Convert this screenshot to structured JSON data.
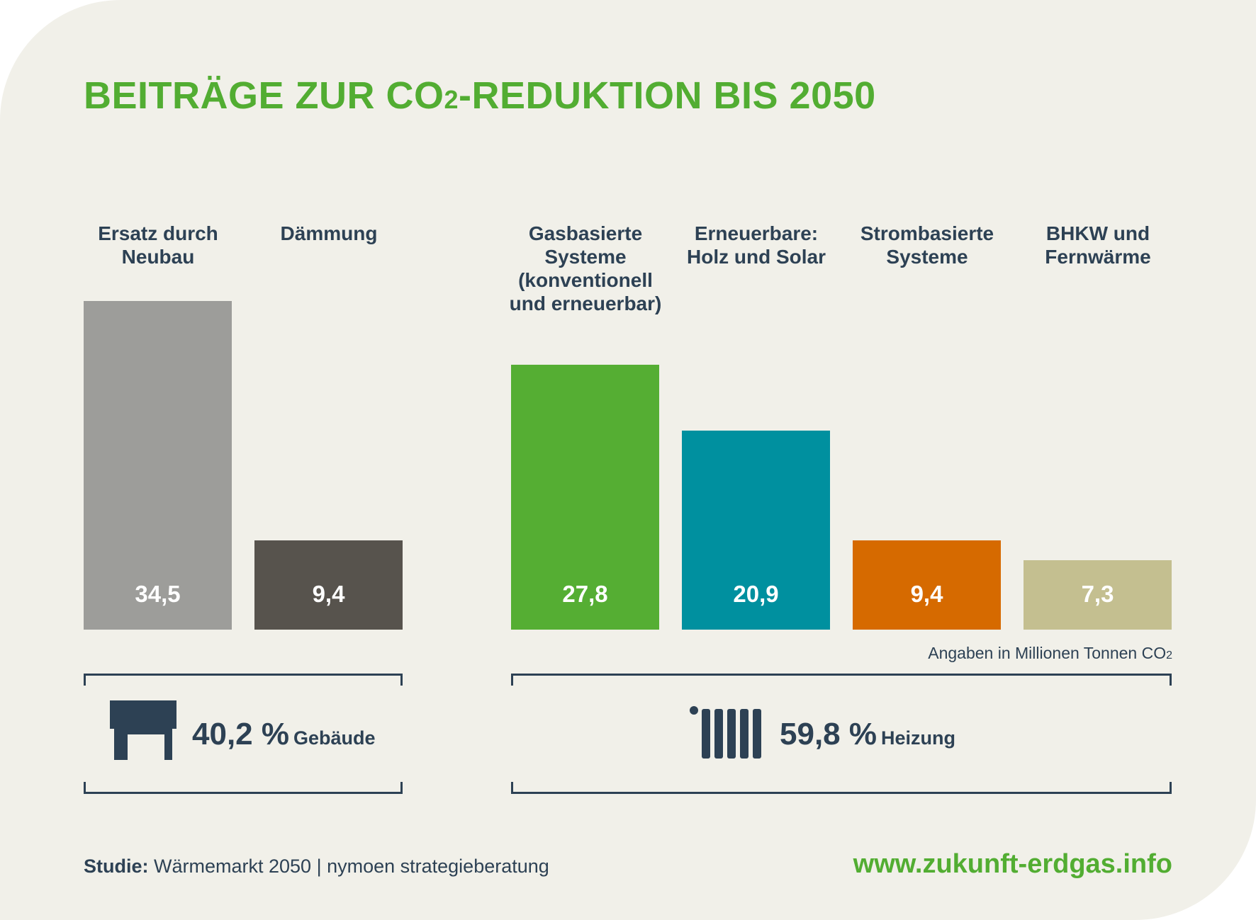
{
  "title": {
    "main": "BEITRÄGE ZUR CO",
    "sub": "2",
    "rest": "-REDUKTION BIS 2050"
  },
  "chart_data": {
    "type": "bar",
    "title": "BEITRÄGE ZUR CO2-REDUKTION BIS 2050",
    "categories": [
      "Ersatz durch Neubau",
      "Dämmung",
      "Gasbasierte Systeme (konventionell und erneuerbar)",
      "Erneuerbare: Holz und Solar",
      "Strombasierte Systeme",
      "BHKW und Fernwärme"
    ],
    "values": [
      34.5,
      9.4,
      27.8,
      20.9,
      9.4,
      7.3
    ],
    "value_labels": [
      "34,5",
      "9,4",
      "27,8",
      "20,9",
      "9,4",
      "7,3"
    ],
    "colors": [
      "#9d9d9a",
      "#57534d",
      "#55ae33",
      "#00909f",
      "#d66a00",
      "#c4bf90"
    ],
    "groups": [
      {
        "name": "Gebäude",
        "share": "40,2 %"
      },
      {
        "name": "Heizung",
        "share": "59,8 %"
      }
    ],
    "units_note": "Angaben in Millionen Tonnen CO2"
  },
  "labels": {
    "cat0": [
      "Ersatz durch",
      "Neubau"
    ],
    "cat1": [
      "Dämmung"
    ],
    "cat2": [
      "Gasbasierte",
      "Systeme",
      "(konventionell",
      "und erneuerbar)"
    ],
    "cat3": [
      "Erneuerbare:",
      "Holz und Solar"
    ],
    "cat4": [
      "Strombasierte",
      "Systeme"
    ],
    "cat5": [
      "BHKW und",
      "Fernwärme"
    ]
  },
  "units": {
    "text": "Angaben in Millionen Tonnen CO",
    "sub": "2"
  },
  "summary": {
    "gebaeude": {
      "pct": "40,2 %",
      "label": "Gebäude",
      "icon": "house-icon"
    },
    "heizung": {
      "pct": "59,8 %",
      "label": "Heizung",
      "icon": "radiator-icon"
    }
  },
  "footer": {
    "study_label": "Studie:",
    "study_text": " Wärmemarkt 2050 | nymoen strategieberatung",
    "url": "www.zukunft-erdgas.info"
  }
}
